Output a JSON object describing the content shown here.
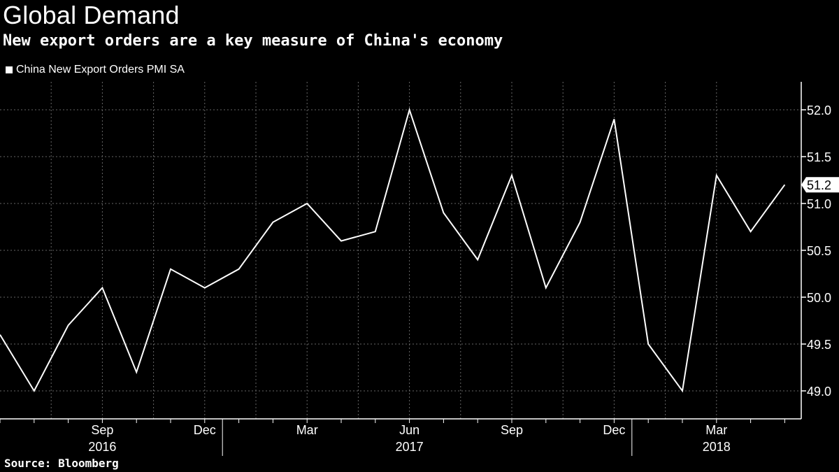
{
  "title": "Global Demand",
  "subtitle": "New export orders are a key measure of China's economy",
  "source": "Source: Bloomberg",
  "colors": {
    "background": "#000000",
    "line": "#ffffff",
    "grid": "#666666"
  },
  "chart_data": {
    "type": "line",
    "title": "",
    "xlabel": "",
    "ylabel": "",
    "legend_position": "top-left",
    "grid": true,
    "ylim": [
      48.75,
      52.25
    ],
    "y_ticks": [
      49.0,
      49.5,
      50.0,
      50.5,
      51.0,
      51.5,
      52.0
    ],
    "y_tick_labels": [
      "49.0",
      "49.5",
      "50.0",
      "50.5",
      "51.0",
      "51.5",
      "52.0"
    ],
    "x_tick_labels": [
      "Sep",
      "Dec",
      "Mar",
      "Jun",
      "Sep",
      "Dec",
      "Mar"
    ],
    "x_tick_indices": [
      3,
      6,
      9,
      12,
      15,
      18,
      21
    ],
    "year_labels": [
      "2016",
      "2017",
      "2018"
    ],
    "year_label_indices": [
      3,
      12,
      21
    ],
    "x": [
      "2016-06",
      "2016-07",
      "2016-08",
      "2016-09",
      "2016-10",
      "2016-11",
      "2016-12",
      "2017-01",
      "2017-02",
      "2017-03",
      "2017-04",
      "2017-05",
      "2017-06",
      "2017-07",
      "2017-08",
      "2017-09",
      "2017-10",
      "2017-11",
      "2017-12",
      "2018-01",
      "2018-02",
      "2018-03",
      "2018-04",
      "2018-05"
    ],
    "series": [
      {
        "name": "China New Export Orders PMI SA",
        "values": [
          49.6,
          49.0,
          49.7,
          50.1,
          49.2,
          50.3,
          50.1,
          50.3,
          50.8,
          51.0,
          50.6,
          50.7,
          52.0,
          50.9,
          50.4,
          51.3,
          50.1,
          50.8,
          51.9,
          49.5,
          49.0,
          51.3,
          50.7,
          51.2
        ]
      }
    ],
    "last_value_label": "51.2"
  }
}
